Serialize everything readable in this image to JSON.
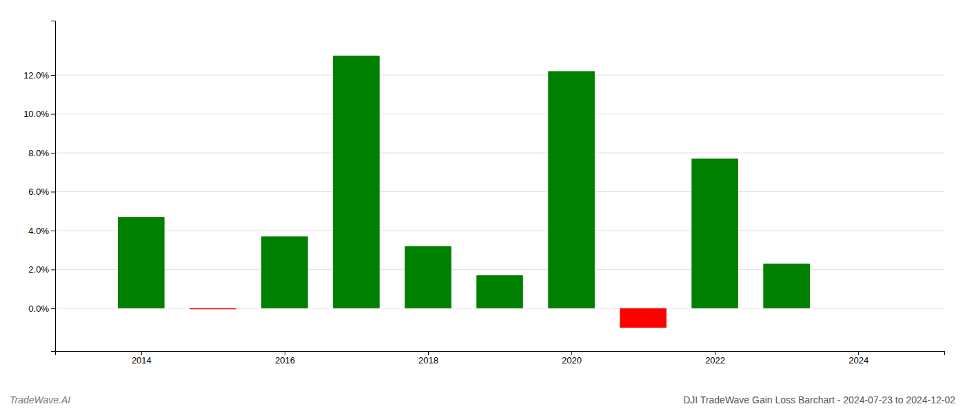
{
  "chart_data": {
    "type": "bar",
    "title": "DJI TradeWave Gain Loss Barchart - 2024-07-23 to 2024-12-02",
    "annotations": [
      "TradeWave.AI"
    ],
    "x": [
      2014,
      2015,
      2016,
      2017,
      2018,
      2019,
      2020,
      2021,
      2022,
      2023
    ],
    "values": [
      0.047,
      -0.0005,
      0.037,
      0.13,
      0.032,
      0.017,
      0.122,
      -0.01,
      0.077,
      0.023
    ],
    "colors": [
      "#008000",
      "#ff0000",
      "#008000",
      "#008000",
      "#008000",
      "#008000",
      "#008000",
      "#ff0000",
      "#008000",
      "#008000"
    ],
    "xlim": [
      2012.8,
      2025.2
    ],
    "xticks": [
      2014,
      2016,
      2018,
      2020,
      2022,
      2024
    ],
    "ylim": [
      -0.022,
      0.148
    ],
    "yticks": [
      {
        "value": 0.0,
        "label": "0.0%"
      },
      {
        "value": 0.02,
        "label": "2.0%"
      },
      {
        "value": 0.04,
        "label": "4.0%"
      },
      {
        "value": 0.06,
        "label": "6.0%"
      },
      {
        "value": 0.08,
        "label": "8.0%"
      },
      {
        "value": 0.1,
        "label": "10.0%"
      },
      {
        "value": 0.12,
        "label": "12.0%"
      }
    ],
    "grid": true
  }
}
